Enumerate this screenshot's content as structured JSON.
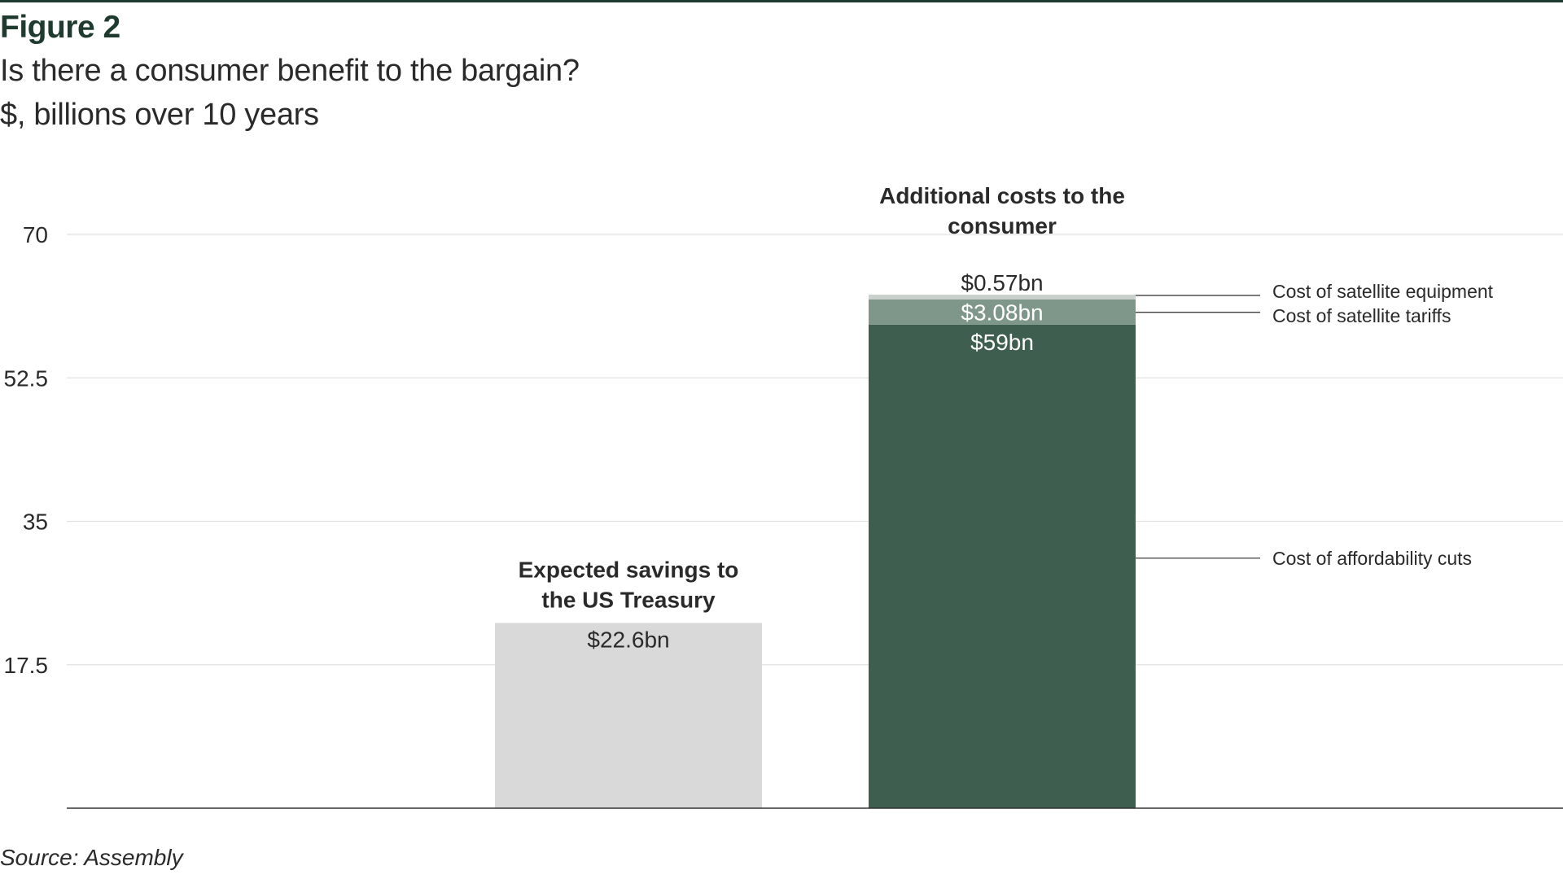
{
  "figure_label": "Figure 2",
  "title": "Is there a consumer benefit to the bargain?",
  "subtitle": "$, billions over 10 years",
  "source": "Source: Assembly",
  "colors": {
    "savings": "#d9d9d9",
    "affordability": "#3e5f4f",
    "tariffs": "#7f978a",
    "equipment": "#c9d1cc",
    "brand": "#1f3b2f"
  },
  "chart_data": {
    "type": "bar",
    "stacked": true,
    "ylim": [
      0,
      70
    ],
    "yticks": [
      17.5,
      35,
      52.5,
      70
    ],
    "ytick_labels": [
      "17.5",
      "35",
      "52.5",
      "70"
    ],
    "grid": true,
    "bars": [
      {
        "group_label": [
          "Expected savings to",
          "the US Treasury"
        ],
        "segments": [
          {
            "value": 22.6,
            "label": "$22.6bn",
            "color": "#d9d9d9",
            "text_color": "#2a2a2a",
            "callout": ""
          }
        ]
      },
      {
        "group_label": [
          "Additional costs to the",
          "consumer"
        ],
        "segments": [
          {
            "value": 59,
            "label": "$59bn",
            "color": "#3e5f4f",
            "text_color": "#ffffff",
            "callout": "Cost of affordability cuts"
          },
          {
            "value": 3.08,
            "label": "$3.08bn",
            "color": "#7f978a",
            "text_color": "#ffffff",
            "callout": "Cost of satellite tariffs"
          },
          {
            "value": 0.57,
            "label": "$0.57bn",
            "color": "#c9d1cc",
            "text_color": "#2a2a2a",
            "callout": "Cost of satellite equipment"
          }
        ]
      }
    ]
  }
}
